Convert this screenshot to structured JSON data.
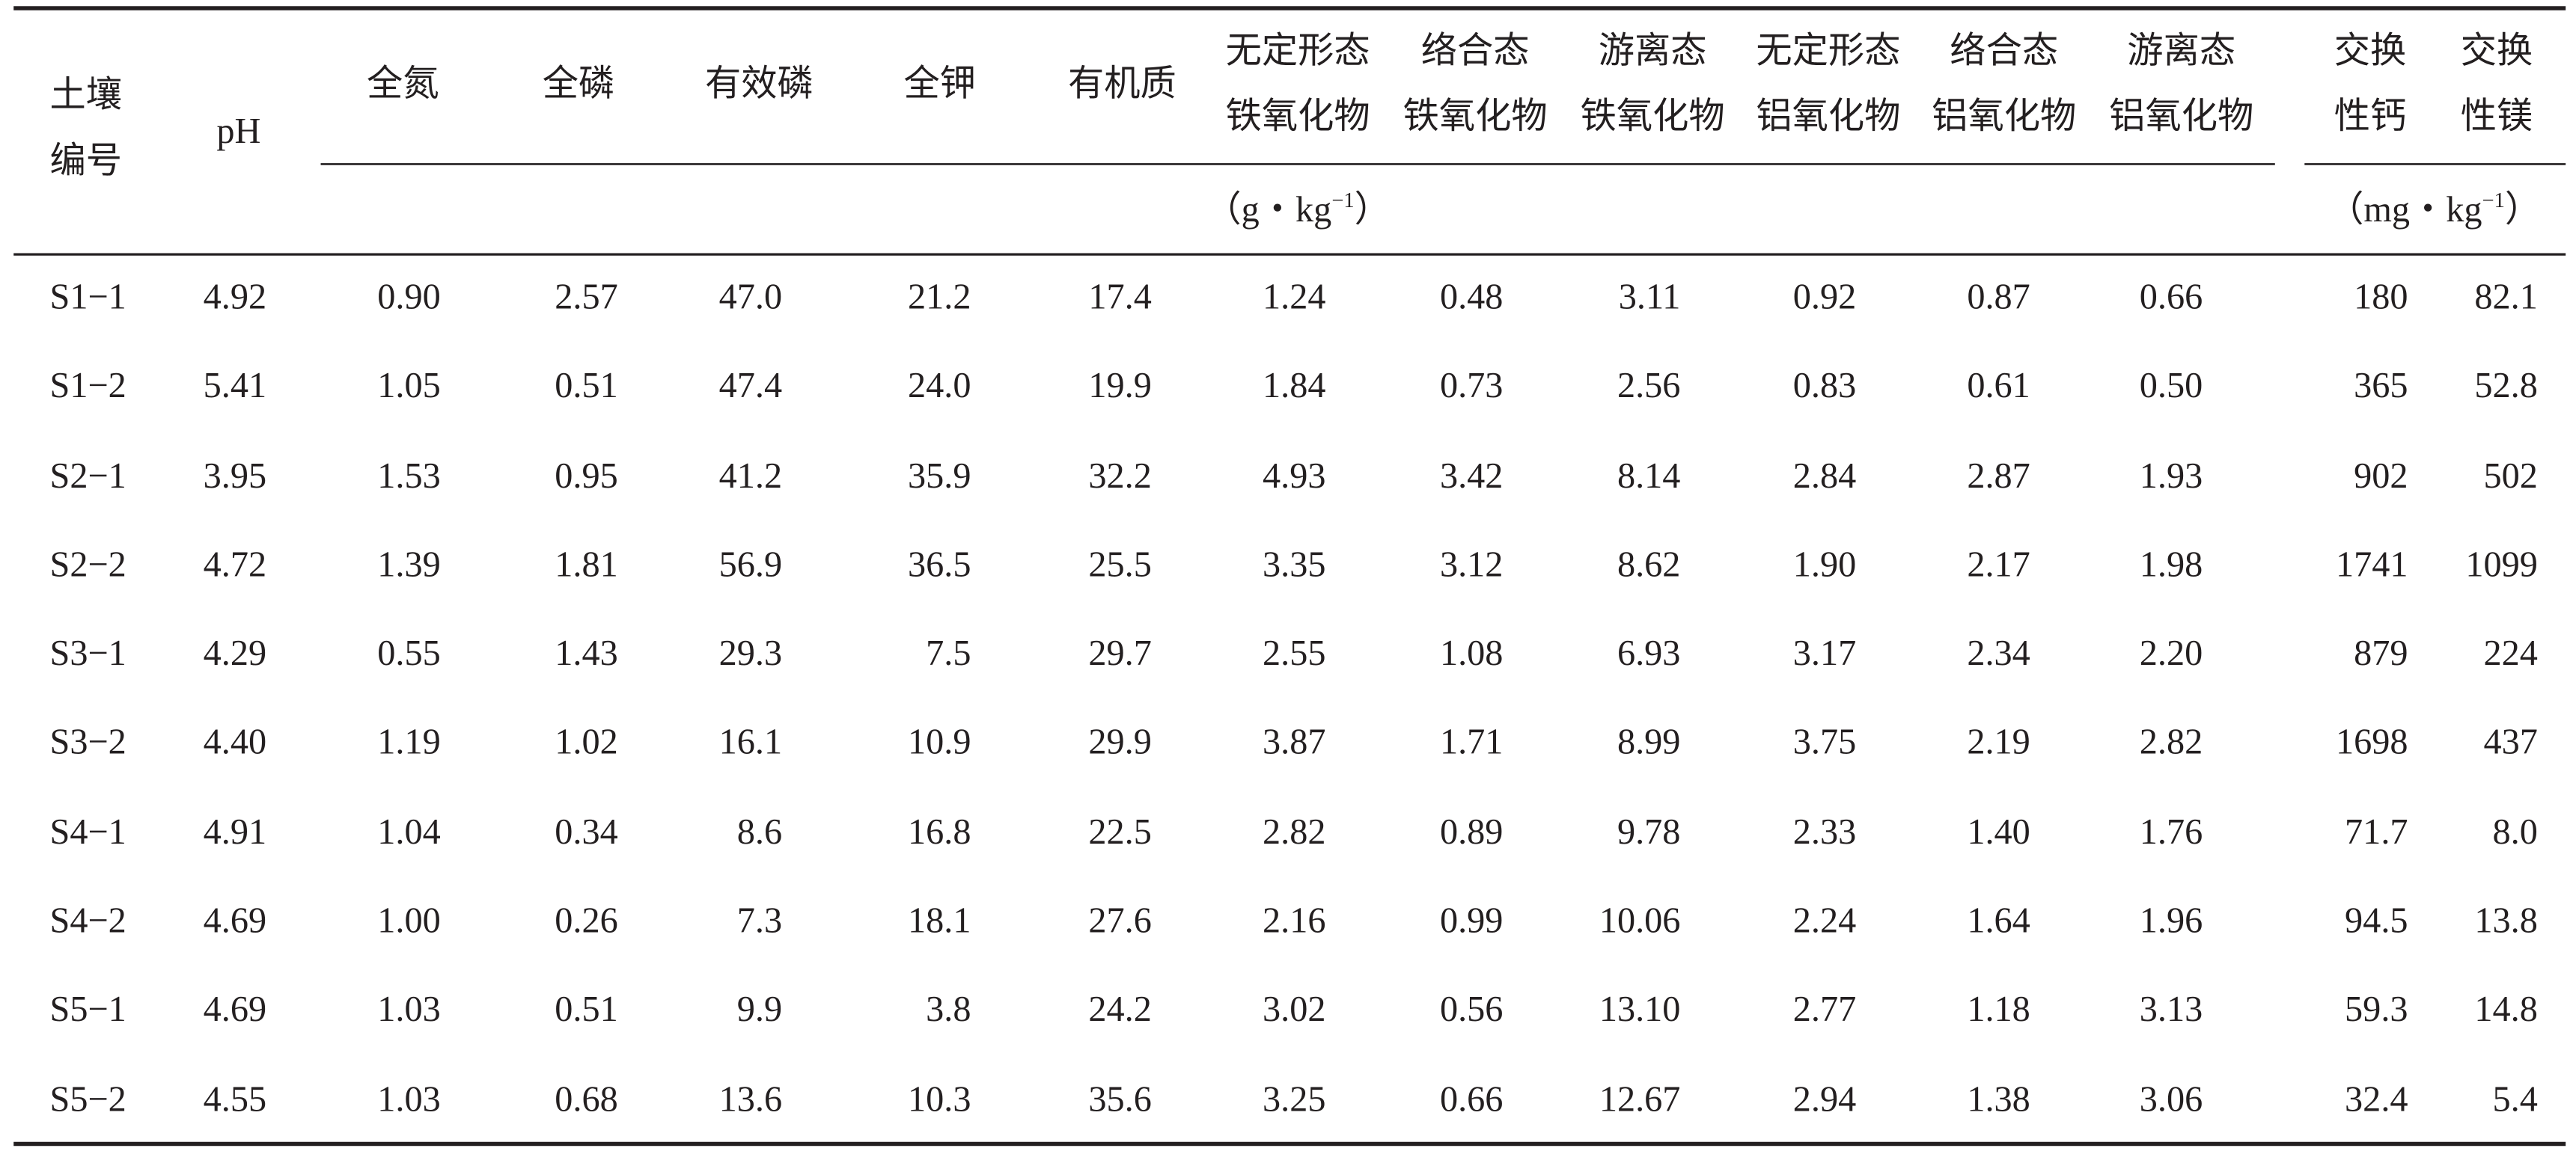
{
  "table": {
    "columns": [
      [
        "土壤",
        "编号"
      ],
      [
        "pH"
      ],
      [
        "全氮"
      ],
      [
        "全磷"
      ],
      [
        "有效磷"
      ],
      [
        "全钾"
      ],
      [
        "有机质"
      ],
      [
        "无定形态",
        "铁氧化物"
      ],
      [
        "络合态",
        "铁氧化物"
      ],
      [
        "游离态",
        "铁氧化物"
      ],
      [
        "无定形态",
        "铝氧化物"
      ],
      [
        "络合态",
        "铝氧化物"
      ],
      [
        "游离态",
        "铝氧化物"
      ],
      [
        "交换",
        "性钙"
      ],
      [
        "交换",
        "性镁"
      ]
    ],
    "units": [
      {
        "open": "（g・kg",
        "sup": "−1",
        "close": "）"
      },
      {
        "open": "（mg・kg",
        "sup": "−1",
        "close": "）"
      }
    ],
    "rows": [
      [
        "S1−1",
        "4.92",
        "0.90",
        "2.57",
        "47.0",
        "21.2",
        "17.4",
        "1.24",
        "0.48",
        "3.11",
        "0.92",
        "0.87",
        "0.66",
        "180",
        "82.1"
      ],
      [
        "S1−2",
        "5.41",
        "1.05",
        "0.51",
        "47.4",
        "24.0",
        "19.9",
        "1.84",
        "0.73",
        "2.56",
        "0.83",
        "0.61",
        "0.50",
        "365",
        "52.8"
      ],
      [
        "S2−1",
        "3.95",
        "1.53",
        "0.95",
        "41.2",
        "35.9",
        "32.2",
        "4.93",
        "3.42",
        "8.14",
        "2.84",
        "2.87",
        "1.93",
        "902",
        "502"
      ],
      [
        "S2−2",
        "4.72",
        "1.39",
        "1.81",
        "56.9",
        "36.5",
        "25.5",
        "3.35",
        "3.12",
        "8.62",
        "1.90",
        "2.17",
        "1.98",
        "1741",
        "1099"
      ],
      [
        "S3−1",
        "4.29",
        "0.55",
        "1.43",
        "29.3",
        "7.5",
        "29.7",
        "2.55",
        "1.08",
        "6.93",
        "3.17",
        "2.34",
        "2.20",
        "879",
        "224"
      ],
      [
        "S3−2",
        "4.40",
        "1.19",
        "1.02",
        "16.1",
        "10.9",
        "29.9",
        "3.87",
        "1.71",
        "8.99",
        "3.75",
        "2.19",
        "2.82",
        "1698",
        "437"
      ],
      [
        "S4−1",
        "4.91",
        "1.04",
        "0.34",
        "8.6",
        "16.8",
        "22.5",
        "2.82",
        "0.89",
        "9.78",
        "2.33",
        "1.40",
        "1.76",
        "71.7",
        "8.0"
      ],
      [
        "S4−2",
        "4.69",
        "1.00",
        "0.26",
        "7.3",
        "18.1",
        "27.6",
        "2.16",
        "0.99",
        "10.06",
        "2.24",
        "1.64",
        "1.96",
        "94.5",
        "13.8"
      ],
      [
        "S5−1",
        "4.69",
        "1.03",
        "0.51",
        "9.9",
        "3.8",
        "24.2",
        "3.02",
        "0.56",
        "13.10",
        "2.77",
        "1.18",
        "3.13",
        "59.3",
        "14.8"
      ],
      [
        "S5−2",
        "4.55",
        "1.03",
        "0.68",
        "13.6",
        "10.3",
        "35.6",
        "3.25",
        "0.66",
        "12.67",
        "2.94",
        "1.38",
        "3.06",
        "32.4",
        "5.4"
      ]
    ]
  }
}
